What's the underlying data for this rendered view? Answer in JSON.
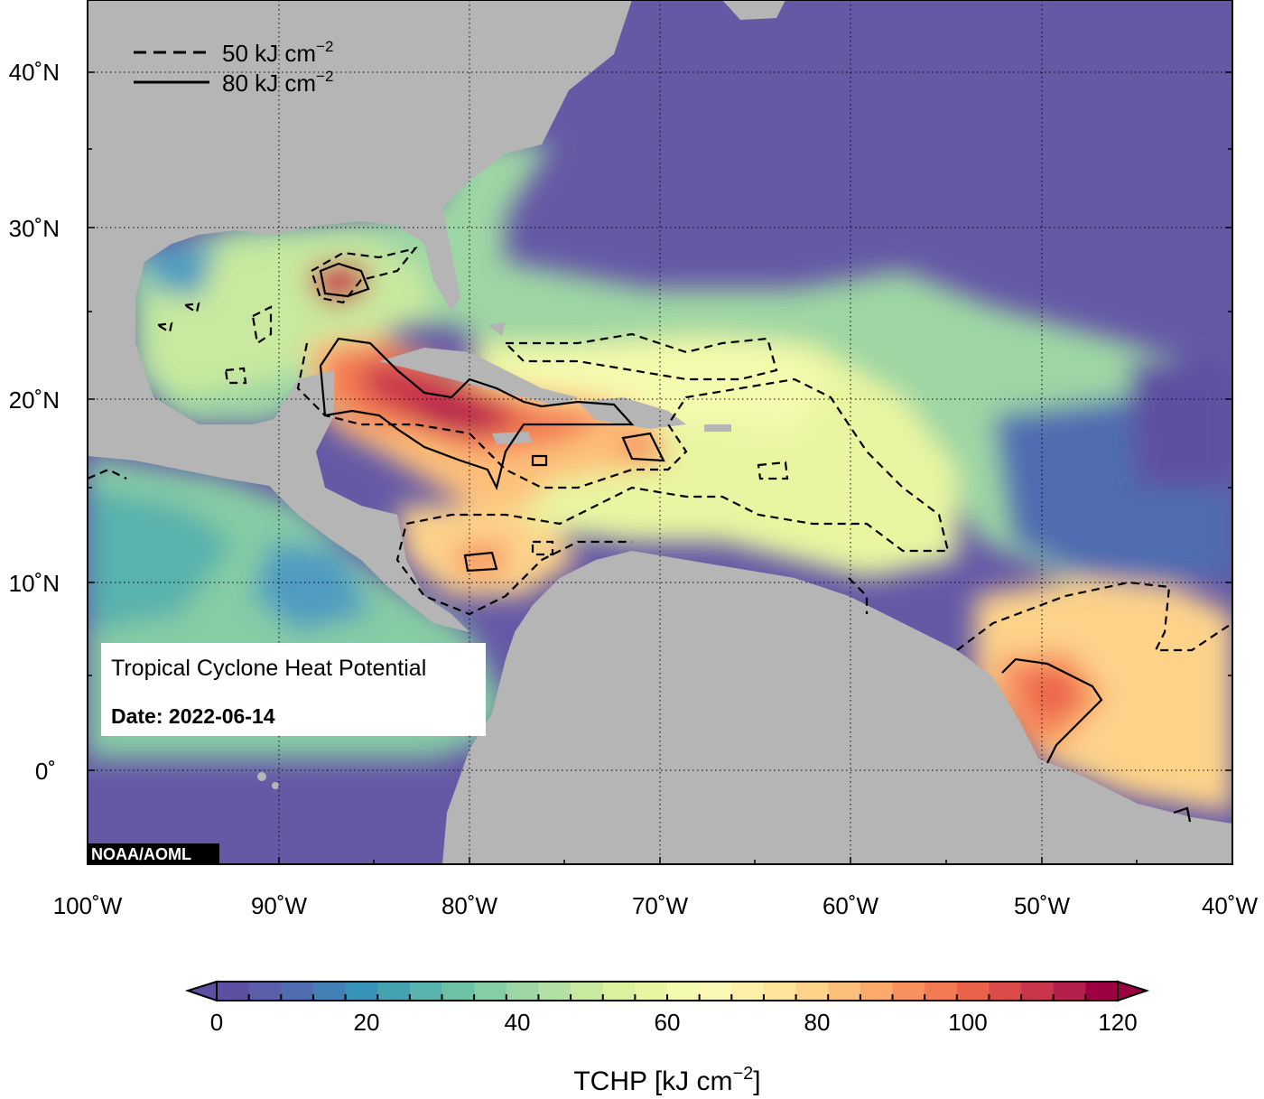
{
  "map": {
    "lat_labels": [
      "40˚N",
      "30˚N",
      "20˚N",
      "10˚N",
      "0˚"
    ],
    "lon_labels": [
      "100˚W",
      "90˚W",
      "80˚W",
      "70˚W",
      "60˚W",
      "50˚W",
      "40˚W"
    ],
    "legend": {
      "dashed_label": "50 kJ cm",
      "solid_label": "80 kJ cm",
      "exponent": "−2"
    },
    "info_box": {
      "title": "Tropical Cyclone Heat Potential",
      "date": "Date: 2022-06-14"
    },
    "credit": "NOAA/AOML"
  },
  "colorbar": {
    "tick_labels": [
      "0",
      "20",
      "40",
      "60",
      "80",
      "100",
      "120"
    ],
    "label": "TCHP [kJ cm",
    "label_exponent": "−2",
    "label_close": "]",
    "colors": [
      "#5e4fa2",
      "#5b5ea9",
      "#4f6db0",
      "#4280b6",
      "#3793b8",
      "#44a2b1",
      "#58b2ad",
      "#6dc1a5",
      "#86cca4",
      "#9dd6a4",
      "#b3e0a3",
      "#c8e99f",
      "#dbf19e",
      "#e9f5a0",
      "#f4faae",
      "#fbf8b6",
      "#fef0a8",
      "#fee49a",
      "#fdd38a",
      "#fdc07a",
      "#fcaa6b",
      "#f8915e",
      "#f37a52",
      "#ea6249",
      "#db4b4a",
      "#c9364c",
      "#b3204d",
      "#9e0142"
    ]
  }
}
